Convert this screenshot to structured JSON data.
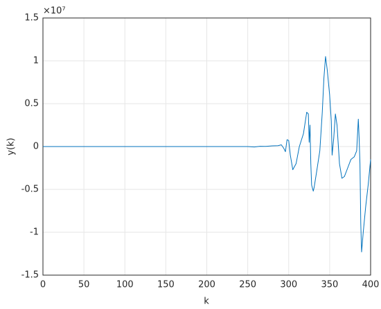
{
  "chart_data": {
    "type": "line",
    "x_label": "k",
    "y_label": "y(k)",
    "y_multiplier": "×10⁷",
    "x": [
      0,
      250,
      258,
      265,
      272,
      280,
      287,
      291,
      294,
      296,
      298,
      300,
      302,
      305,
      309,
      313,
      318,
      322,
      324,
      325,
      326,
      327,
      328,
      330,
      331,
      334,
      338,
      341,
      343,
      345,
      347,
      350,
      352,
      353,
      355,
      357,
      359,
      362,
      365,
      368,
      372,
      376,
      380,
      383,
      385,
      386,
      387,
      388,
      389,
      391,
      394,
      397,
      400
    ],
    "series": [
      {
        "color": "#0072bd",
        "values": [
          0,
          0,
          -0.005,
          0.003,
          0.002,
          0.008,
          0.01,
          0.02,
          -0.02,
          -0.06,
          0.08,
          0.07,
          -0.1,
          -0.27,
          -0.2,
          0.0,
          0.15,
          0.4,
          0.38,
          0.05,
          0.25,
          -0.2,
          -0.45,
          -0.52,
          -0.48,
          -0.3,
          -0.05,
          0.4,
          0.8,
          1.05,
          0.9,
          0.6,
          0.3,
          -0.1,
          0.1,
          0.38,
          0.25,
          -0.2,
          -0.37,
          -0.35,
          -0.25,
          -0.15,
          -0.12,
          -0.05,
          0.32,
          0.1,
          -0.2,
          -0.9,
          -1.23,
          -1.0,
          -0.7,
          -0.45,
          -0.15
        ]
      }
    ],
    "xlim": [
      0,
      400
    ],
    "xticks": [
      0,
      50,
      100,
      150,
      200,
      250,
      300,
      350,
      400
    ],
    "ylim": [
      -1.5,
      1.5
    ],
    "yticks": [
      -1.5,
      -1,
      -0.5,
      0,
      0.5,
      1,
      1.5
    ],
    "grid": true
  }
}
